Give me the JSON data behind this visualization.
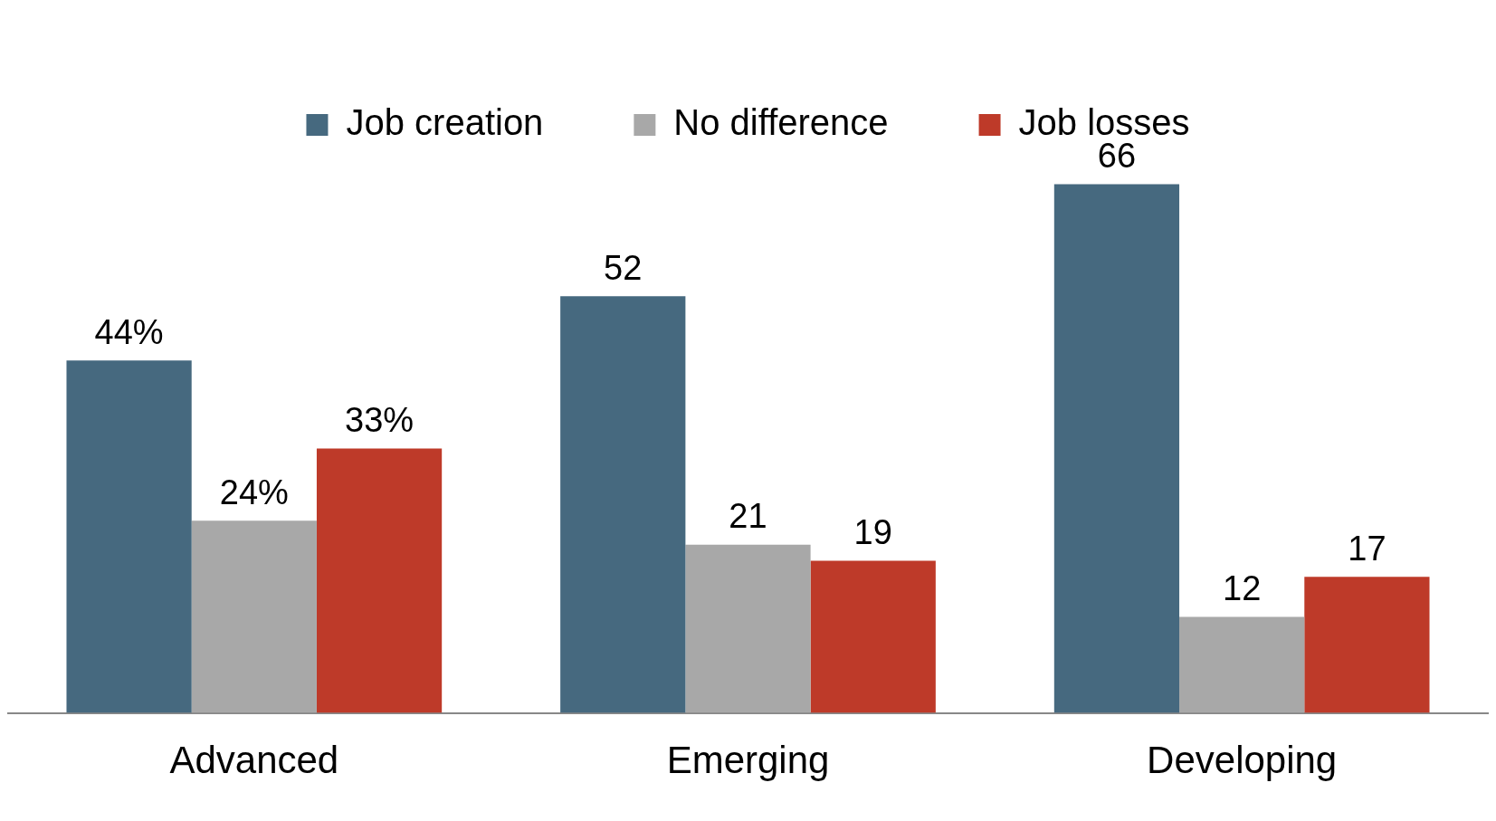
{
  "chart_data": {
    "type": "bar",
    "categories": [
      "Advanced",
      "Emerging",
      "Developing"
    ],
    "series": [
      {
        "name": "Job creation",
        "color": "#46697f",
        "values": [
          44,
          52,
          66
        ],
        "value_labels": [
          "44%",
          "52",
          "66"
        ]
      },
      {
        "name": "No difference",
        "color": "#a8a8a8",
        "values": [
          24,
          21,
          12
        ],
        "value_labels": [
          "24%",
          "21",
          "12"
        ]
      },
      {
        "name": "Job losses",
        "color": "#be3a29",
        "values": [
          33,
          19,
          17
        ],
        "value_labels": [
          "33%",
          "19",
          "17"
        ]
      }
    ],
    "legend": "top",
    "grid": false
  }
}
